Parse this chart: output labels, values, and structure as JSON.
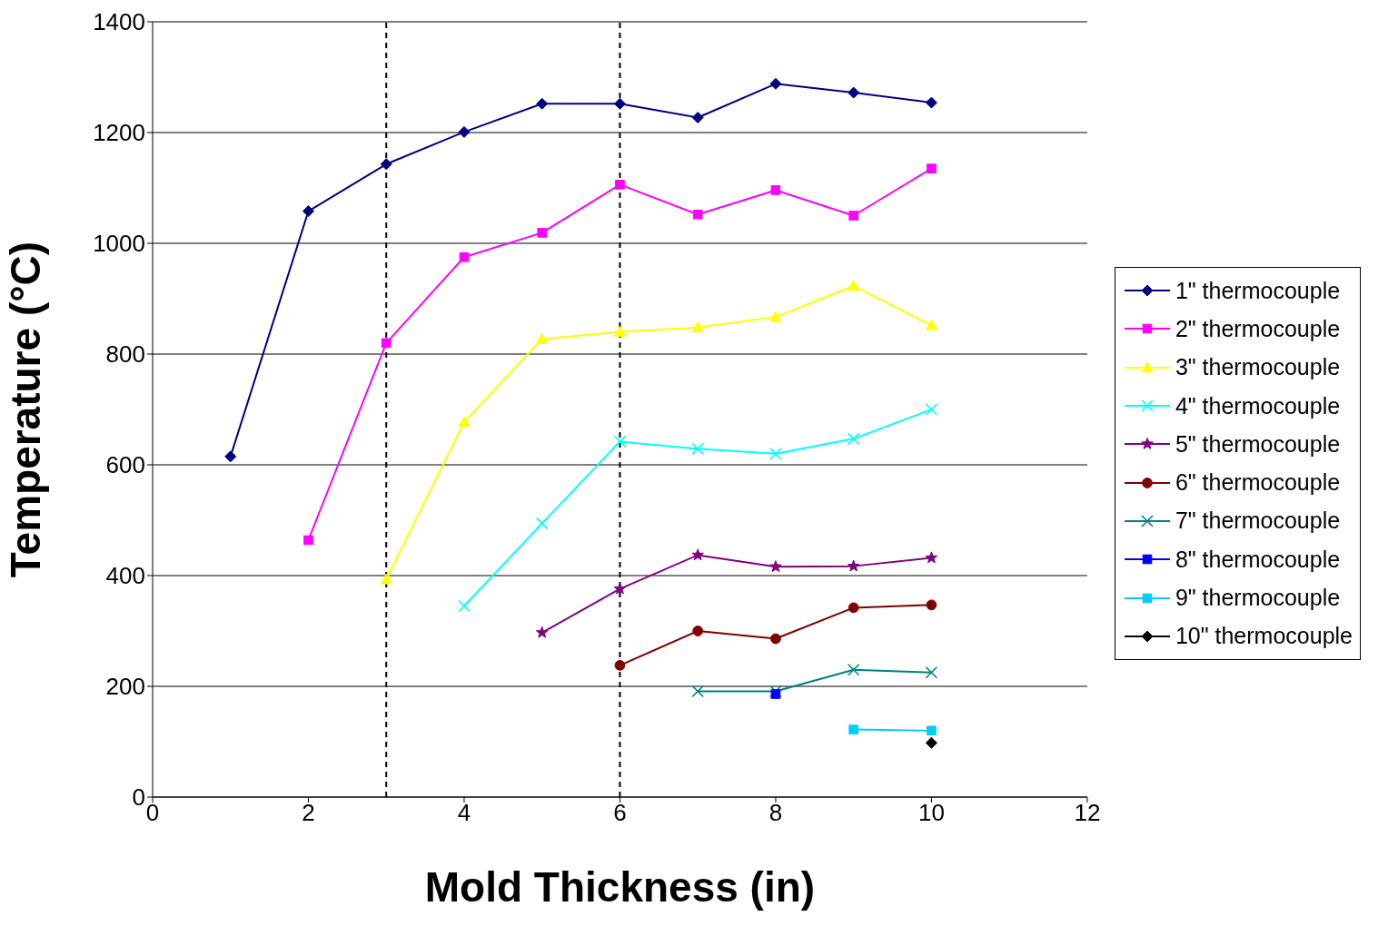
{
  "chart_data": {
    "type": "line",
    "xlabel": "Mold Thickness (in)",
    "ylabel": "Temperature (°C)",
    "x": [
      1,
      2,
      3,
      4,
      5,
      6,
      7,
      8,
      9,
      10
    ],
    "xlim": [
      0,
      12
    ],
    "xticks": [
      0,
      2,
      4,
      6,
      8,
      10,
      12
    ],
    "ylim": [
      0,
      1400
    ],
    "yticks": [
      0,
      200,
      400,
      600,
      800,
      1000,
      1200,
      1400
    ],
    "grid": "y",
    "legend": "right",
    "ref_lines": [
      {
        "axis": "x",
        "value": 3,
        "color": "#000000",
        "line_style": "dashed"
      },
      {
        "axis": "x",
        "value": 6,
        "color": "#000000",
        "line_style": "dashed"
      }
    ],
    "series": [
      {
        "name": "1\" thermocouple",
        "color": "#000080",
        "marker": "diamond",
        "values": [
          615,
          1058,
          1143,
          1201,
          1252,
          1252,
          1227,
          1288,
          1272,
          1254
        ]
      },
      {
        "name": "2\" thermocouple",
        "color": "#ff00ff",
        "marker": "square",
        "values": [
          null,
          464,
          820,
          975,
          1019,
          1106,
          1052,
          1096,
          1050,
          1135
        ]
      },
      {
        "name": "3\" thermocouple",
        "color": "#ffff00",
        "marker": "triangle",
        "values": [
          null,
          null,
          393,
          677,
          827,
          840,
          848,
          867,
          923,
          852
        ]
      },
      {
        "name": "4\" thermocouple",
        "color": "#00ffff",
        "marker": "cross",
        "values": [
          null,
          null,
          null,
          345,
          494,
          642,
          629,
          620,
          647,
          700
        ]
      },
      {
        "name": "5\" thermocouple",
        "color": "#800080",
        "marker": "star",
        "values": [
          null,
          null,
          null,
          null,
          297,
          376,
          437,
          416,
          417,
          432
        ]
      },
      {
        "name": "6\" thermocouple",
        "color": "#800000",
        "marker": "circle",
        "values": [
          null,
          null,
          null,
          null,
          null,
          238,
          300,
          286,
          342,
          347
        ]
      },
      {
        "name": "7\" thermocouple",
        "color": "#008080",
        "marker": "cross",
        "values": [
          null,
          null,
          null,
          null,
          null,
          null,
          191,
          191,
          230,
          225
        ]
      },
      {
        "name": "8\" thermocouple",
        "color": "#0000ff",
        "marker": "square",
        "values": [
          null,
          null,
          null,
          null,
          null,
          null,
          null,
          186,
          null,
          null
        ]
      },
      {
        "name": "9\" thermocouple",
        "color": "#00ccff",
        "marker": "square",
        "values": [
          null,
          null,
          null,
          null,
          null,
          null,
          null,
          null,
          122,
          120
        ]
      },
      {
        "name": "10\" thermocouple",
        "color": "#000000",
        "marker": "diamond",
        "values": [
          null,
          null,
          null,
          null,
          null,
          null,
          null,
          null,
          null,
          98
        ]
      }
    ]
  }
}
